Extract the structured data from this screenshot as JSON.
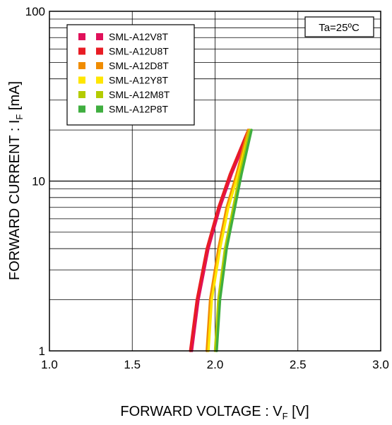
{
  "chart_data": {
    "type": "line",
    "title": "",
    "xlabel": {
      "main": "FORWARD VOLTAGE : V",
      "sub": "F",
      "unit": " [V]"
    },
    "ylabel": {
      "main": "FORWARD CURRENT : I",
      "sub": "F",
      "unit": " [mA]"
    },
    "xlim": [
      1.0,
      3.0
    ],
    "ylim": [
      1,
      100
    ],
    "yscale": "log",
    "grid": true,
    "legend_position": "top-left",
    "annotation": "Ta=25ºC",
    "x_ticks": [
      "1.0",
      "1.5",
      "2.0",
      "2.5",
      "3.0"
    ],
    "y_ticks": [
      "1",
      "10",
      "100"
    ],
    "series": [
      {
        "name": "SML-A12V8T",
        "color": "#e0105a",
        "x": [
          1.86,
          1.9,
          1.96,
          2.03,
          2.1,
          2.21
        ],
        "y": [
          1,
          2,
          4,
          7,
          11,
          20
        ]
      },
      {
        "name": "SML-A12U8T",
        "color": "#e81c24",
        "x": [
          1.85,
          1.89,
          1.95,
          2.02,
          2.09,
          2.2
        ],
        "y": [
          1,
          2,
          4,
          7,
          11,
          20
        ]
      },
      {
        "name": "SML-A12D8T",
        "color": "#f08c00",
        "x": [
          1.95,
          1.97,
          2.02,
          2.07,
          2.13,
          2.2
        ],
        "y": [
          1,
          2,
          4,
          7,
          11,
          20
        ]
      },
      {
        "name": "SML-A12Y8T",
        "color": "#ffe600",
        "x": [
          1.96,
          1.98,
          2.03,
          2.08,
          2.14,
          2.21
        ],
        "y": [
          1,
          2,
          4,
          7,
          11,
          20
        ]
      },
      {
        "name": "SML-A12M8T",
        "color": "#b4cc00",
        "x": [
          2.0,
          2.02,
          2.06,
          2.11,
          2.15,
          2.21
        ],
        "y": [
          1,
          2,
          4,
          7,
          11,
          20
        ]
      },
      {
        "name": "SML-A12P8T",
        "color": "#3fae3f",
        "x": [
          2.01,
          2.03,
          2.07,
          2.12,
          2.16,
          2.22
        ],
        "y": [
          1,
          2,
          4,
          7,
          11,
          20
        ]
      }
    ]
  }
}
